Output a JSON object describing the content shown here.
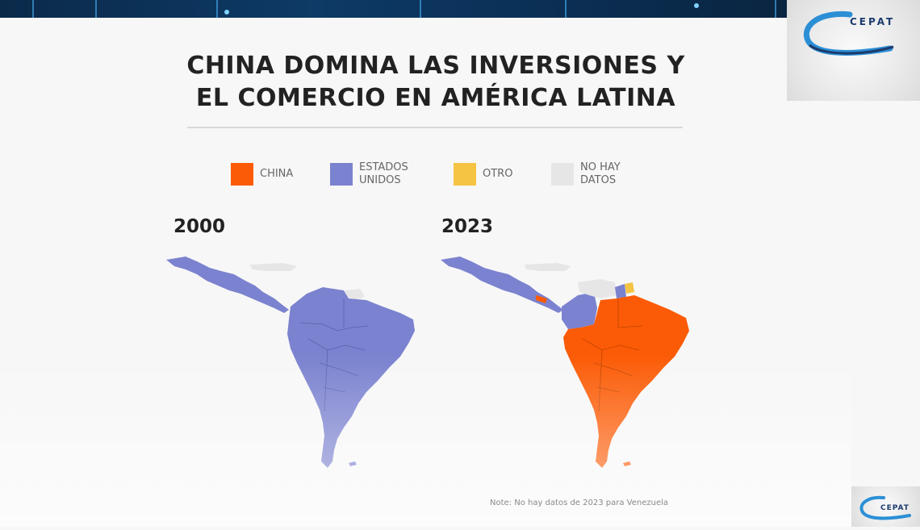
{
  "slide": {
    "title_line1": "CHINA DOMINA LAS INVERSIONES Y",
    "title_line2": "EL COMERCIO EN AMÉRICA LATINA",
    "note": "Note: No hay datos de 2023 para Venezuela"
  },
  "logo": {
    "text": "CEPAT",
    "text_small": "CEPAT"
  },
  "legend": [
    {
      "key": "china",
      "label": "CHINA",
      "color": "#fb5b06"
    },
    {
      "key": "usa",
      "label": "ESTADOS\nUNIDOS",
      "color": "#7b82cf"
    },
    {
      "key": "other",
      "label": "OTRO",
      "color": "#f6c443"
    },
    {
      "key": "nodata",
      "label": "NO HAY\nDATOS",
      "color": "#e6e6e6"
    }
  ],
  "maps": [
    {
      "year": "2000"
    },
    {
      "year": "2023"
    }
  ]
}
